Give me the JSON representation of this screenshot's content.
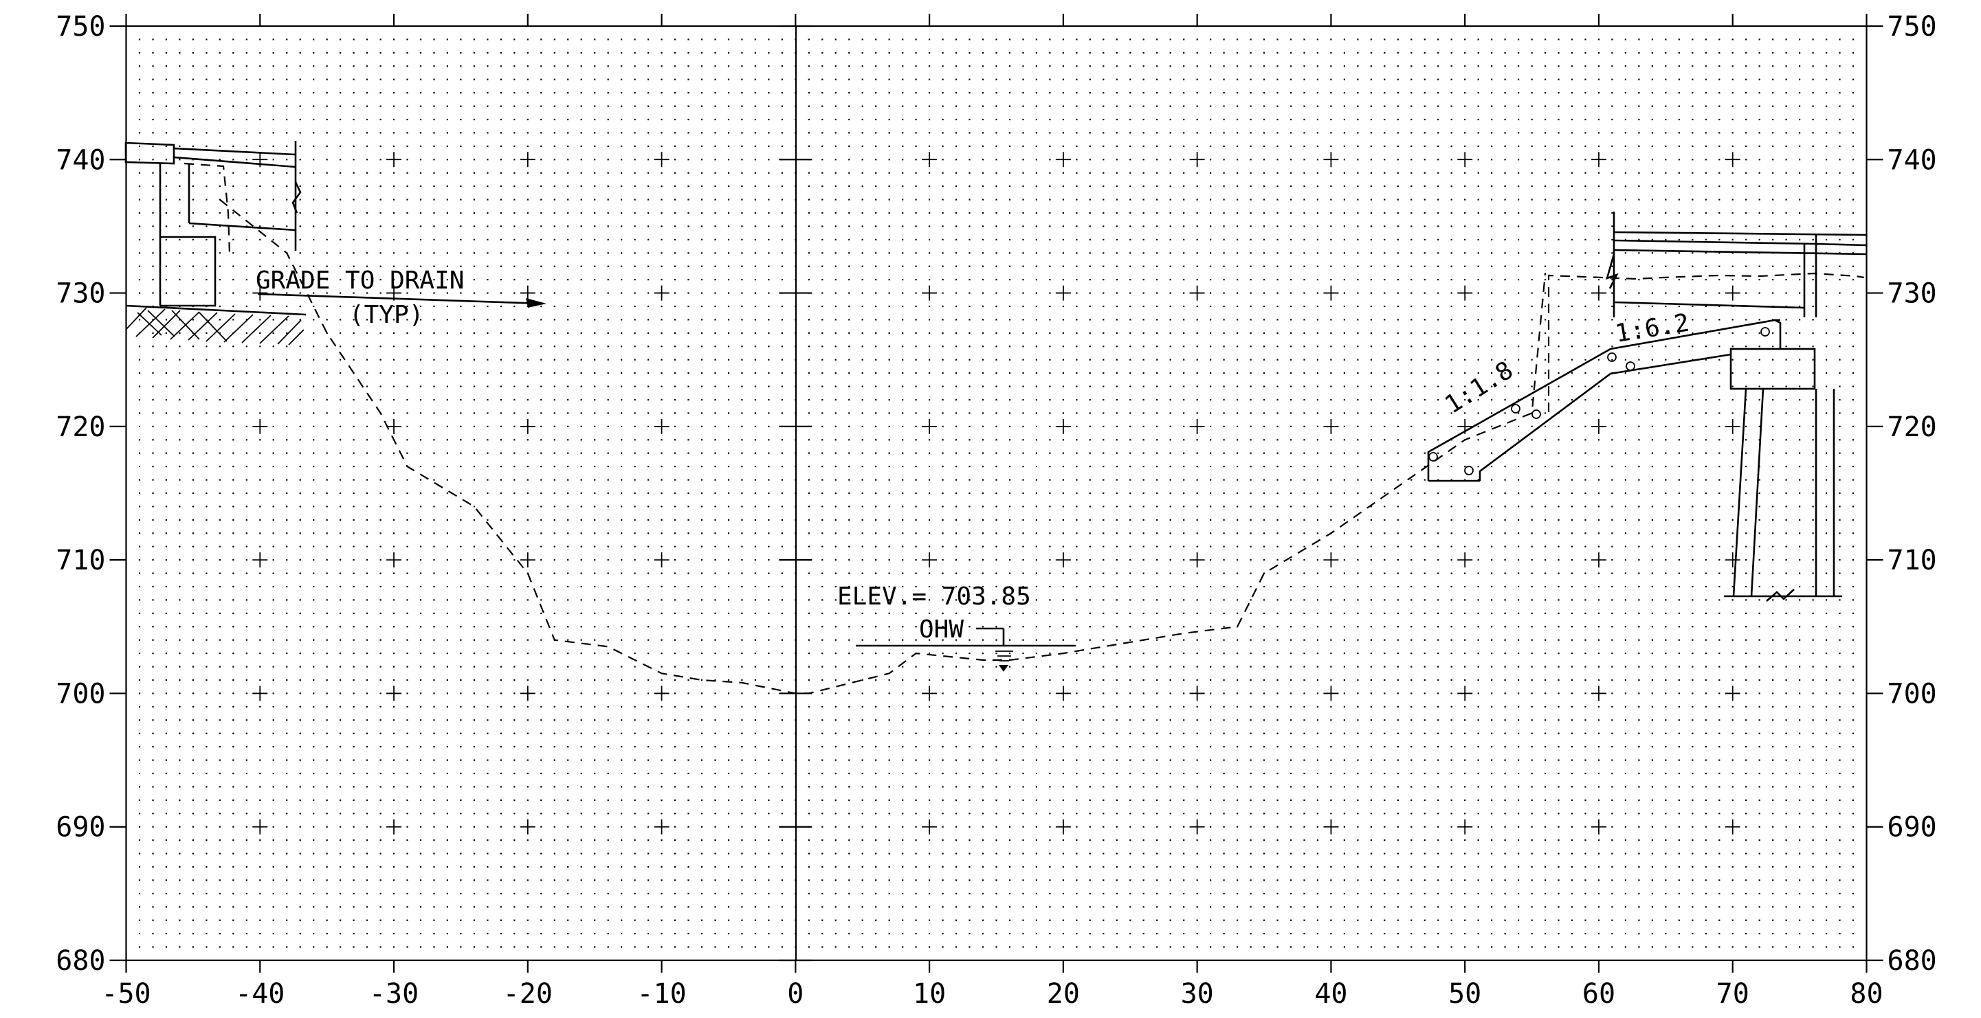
{
  "chart_data": {
    "type": "line",
    "x_tick_labels": [
      "-50",
      "-40",
      "-30",
      "-20",
      "-10",
      "0",
      "10",
      "20",
      "30",
      "40",
      "50",
      "60",
      "70",
      "80"
    ],
    "y_tick_labels": [
      "750",
      "740",
      "730",
      "720",
      "710",
      "700",
      "690",
      "680"
    ],
    "xlim": [
      -50,
      80
    ],
    "ylim": [
      680,
      750
    ],
    "grid": true,
    "series": [
      {
        "style": "dashed",
        "x": [
          -43,
          -38,
          -35,
          -31,
          -29,
          -24,
          -20,
          -18,
          -14,
          -10,
          -7,
          -4,
          0,
          1,
          7,
          9,
          14,
          16,
          20,
          26,
          29,
          33,
          34,
          35,
          40,
          45,
          50,
          55,
          56
        ],
        "y": [
          737,
          733,
          727,
          721,
          717,
          714,
          709,
          704,
          703.5,
          701.5,
          701,
          700.8,
          700,
          700,
          701.5,
          703,
          702.5,
          702.5,
          703,
          704,
          704.5,
          705,
          707,
          709,
          712,
          715.5,
          719,
          721,
          731.5
        ]
      }
    ],
    "annotations": {
      "grade_to_drain": "GRADE TO DRAIN",
      "typ": "(TYP)",
      "elevation": "ELEV.= 703.85",
      "ohw": "OHW",
      "slope_left": "1:1.8",
      "slope_right": "1:6.2"
    }
  }
}
